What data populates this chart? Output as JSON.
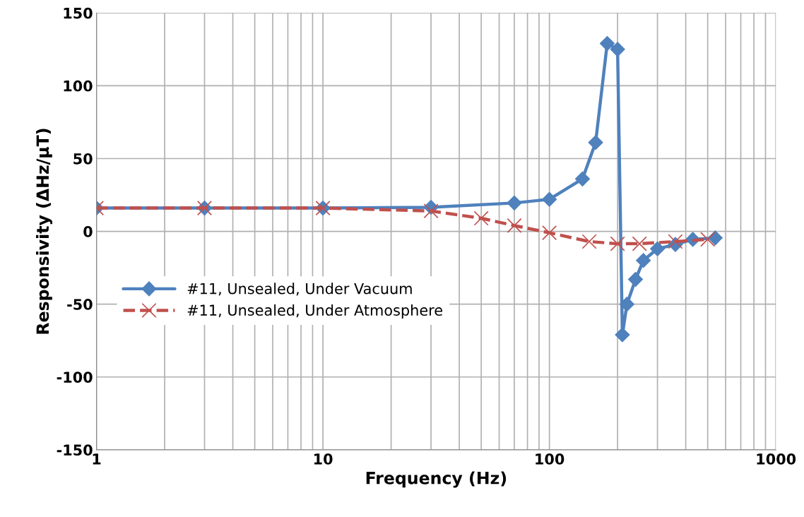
{
  "chart_data": {
    "type": "line",
    "xlabel": "Frequency (Hz)",
    "ylabel": "Responsivity (ΔHz/µT)",
    "log": "x",
    "xlim": [
      1,
      1000
    ],
    "xticks": [
      1,
      10,
      100,
      1000
    ],
    "ylim": [
      -150,
      150
    ],
    "yticks": [
      -150,
      -100,
      -50,
      0,
      50,
      100,
      150
    ],
    "grid": true,
    "legend": "left",
    "series": [
      {
        "name": "#11, Unsealed, Under Vacuum",
        "color": "#4f81bd",
        "marker": "diamond",
        "line_style": "solid",
        "x": [
          1,
          3,
          10,
          30,
          70,
          100,
          140,
          160,
          180,
          200,
          210,
          220,
          240,
          260,
          300,
          360,
          430,
          540
        ],
        "values": [
          16,
          16,
          16,
          16.5,
          19.5,
          22,
          36,
          61,
          129,
          125,
          -71,
          -50,
          -33,
          -20,
          -12,
          -9,
          -5.5,
          -4.5
        ]
      },
      {
        "name": "#11, Unsealed, Under Atmosphere",
        "color": "#c0504d",
        "marker": "cross",
        "line_style": "dashed",
        "x": [
          1,
          3,
          10,
          30,
          50,
          70,
          100,
          150,
          200,
          250,
          360,
          500
        ],
        "values": [
          16,
          16,
          16,
          14,
          9,
          4,
          -1,
          -7,
          -8.5,
          -8.5,
          -7,
          -5.5
        ]
      }
    ]
  }
}
